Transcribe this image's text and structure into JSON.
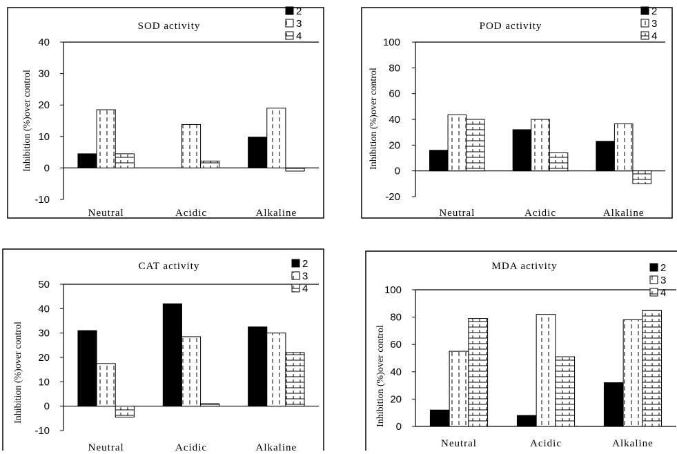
{
  "chart_data": [
    {
      "type": "bar",
      "title": "SOD activity",
      "ylabel": "Inhibition (%)over control",
      "xlabel": "",
      "categories": [
        "Neutral",
        "Acidic",
        "Alkaline"
      ],
      "series": [
        {
          "name": "2",
          "values": [
            4.5,
            0,
            9.8
          ]
        },
        {
          "name": "3",
          "values": [
            18.5,
            13.8,
            19
          ]
        },
        {
          "name": "4",
          "values": [
            4.5,
            2.2,
            -1
          ]
        }
      ],
      "ylim": [
        -10,
        40
      ],
      "yticks": [
        "40",
        "30",
        "20",
        "10",
        "0",
        "-10"
      ],
      "legend_position": "top-right",
      "grid": false
    },
    {
      "type": "bar",
      "title": "POD activity",
      "ylabel": "Inhibition (%)over control",
      "xlabel": "",
      "categories": [
        "Neutral",
        "Acidic",
        "Alkaline"
      ],
      "series": [
        {
          "name": "2",
          "values": [
            16,
            32,
            23
          ]
        },
        {
          "name": "3",
          "values": [
            43.5,
            40,
            36.5
          ]
        },
        {
          "name": "4",
          "values": [
            40,
            14,
            -10
          ]
        }
      ],
      "ylim": [
        -20,
        100
      ],
      "yticks": [
        "100",
        "80",
        "60",
        "40",
        "20",
        "0",
        "-20"
      ],
      "legend_position": "top-right",
      "grid": false
    },
    {
      "type": "bar",
      "title": "CAT activity",
      "ylabel": "Inhibition (%)over control",
      "xlabel": "",
      "categories": [
        "Neutral",
        "Acidic",
        "Alkaline"
      ],
      "series": [
        {
          "name": "2",
          "values": [
            31,
            42,
            32.5
          ]
        },
        {
          "name": "3",
          "values": [
            17.5,
            28.5,
            30
          ]
        },
        {
          "name": "4",
          "values": [
            -4.5,
            1,
            22
          ]
        }
      ],
      "ylim": [
        -10,
        50
      ],
      "yticks": [
        "50",
        "40",
        "30",
        "20",
        "10",
        "0",
        "-10"
      ],
      "legend_position": "top-right",
      "grid": false
    },
    {
      "type": "bar",
      "title": "MDA activity",
      "ylabel": "Inhibition (%)over control",
      "xlabel": "",
      "categories": [
        "Neutral",
        "Acidic",
        "Alkaline"
      ],
      "series": [
        {
          "name": "2",
          "values": [
            12,
            8,
            32
          ]
        },
        {
          "name": "3",
          "values": [
            55,
            82,
            78
          ]
        },
        {
          "name": "4",
          "values": [
            79,
            51,
            85
          ]
        }
      ],
      "ylim": [
        0,
        100
      ],
      "yticks": [
        "100",
        "80",
        "60",
        "40",
        "20",
        "0"
      ],
      "legend_position": "top-right",
      "grid": false
    }
  ]
}
